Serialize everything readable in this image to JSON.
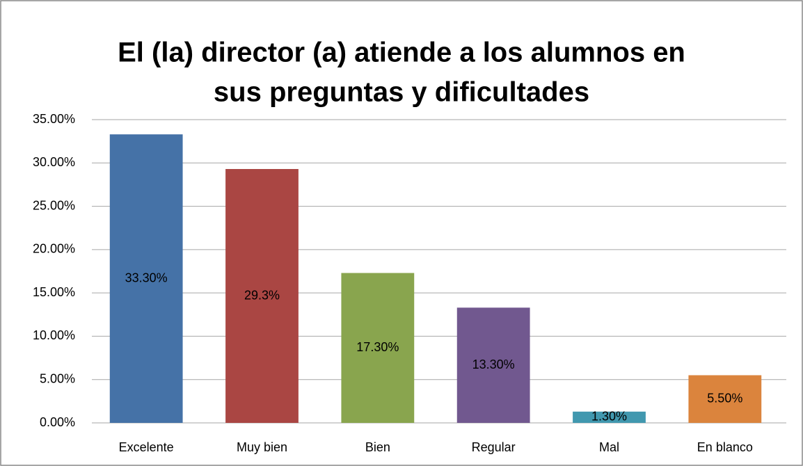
{
  "chart_data": {
    "type": "bar",
    "title": [
      "El (la) director (a) atiende a los alumnos en",
      "sus preguntas y dificultades"
    ],
    "categories": [
      "Excelente",
      "Muy bien",
      "Bien",
      "Regular",
      "Mal",
      "En blanco"
    ],
    "values": [
      33.3,
      29.3,
      17.3,
      13.3,
      1.3,
      5.5
    ],
    "value_labels": [
      "33.30%",
      "29.3%",
      "17.30%",
      "13.30%",
      "1.30%",
      "5.50%"
    ],
    "colors": [
      "#4572a7",
      "#aa4643",
      "#89a54e",
      "#71588f",
      "#4198af",
      "#db843d"
    ],
    "ylim": [
      0,
      35
    ],
    "yticks": [
      {
        "value": 0,
        "label": "0.00%"
      },
      {
        "value": 5,
        "label": "5.00%"
      },
      {
        "value": 10,
        "label": "10.00%"
      },
      {
        "value": 15,
        "label": "15.00%"
      },
      {
        "value": 20,
        "label": "20.00%"
      },
      {
        "value": 25,
        "label": "25.00%"
      },
      {
        "value": 30,
        "label": "30.00%"
      },
      {
        "value": 35,
        "label": "35.00%"
      }
    ],
    "grid": true
  }
}
